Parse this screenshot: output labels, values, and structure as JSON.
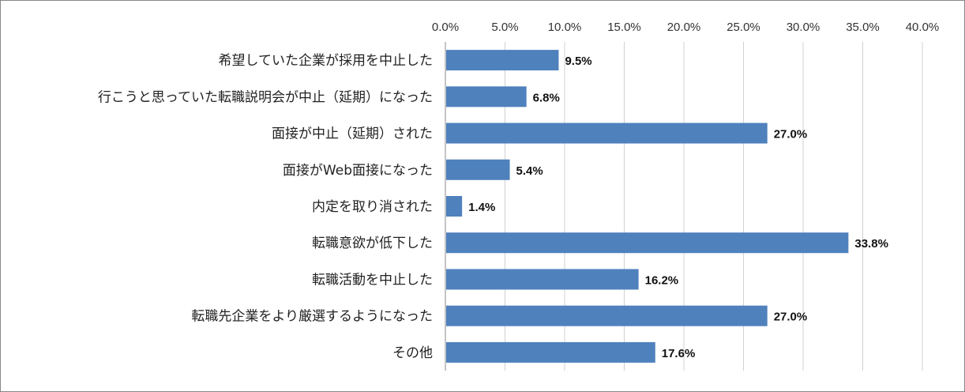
{
  "chart_data": {
    "type": "bar",
    "orientation": "horizontal",
    "categories": [
      "希望していた企業が採用を中止した",
      "行こうと思っていた転職説明会が中止（延期）になった",
      "面接が中止（延期）された",
      "面接がWeb面接になった",
      "内定を取り消された",
      "転職意欲が低下した",
      "転職活動を中止した",
      "転職先企業をより厳選するようになった",
      "その他"
    ],
    "values": [
      9.5,
      6.8,
      27.0,
      5.4,
      1.4,
      33.8,
      16.2,
      27.0,
      17.6
    ],
    "value_labels": [
      "9.5%",
      "6.8%",
      "27.0%",
      "5.4%",
      "1.4%",
      "33.8%",
      "16.2%",
      "27.0%",
      "17.6%"
    ],
    "xlim": [
      0,
      40
    ],
    "xticks": [
      0,
      5,
      10,
      15,
      20,
      25,
      30,
      35,
      40
    ],
    "xtick_labels": [
      "0.0%",
      "5.0%",
      "10.0%",
      "15.0%",
      "20.0%",
      "25.0%",
      "30.0%",
      "35.0%",
      "40.0%"
    ],
    "x_axis_position": "top",
    "grid": true,
    "legend": "none",
    "title": "",
    "xlabel": "",
    "ylabel": "",
    "bar_color": "#4f81bd",
    "grid_color": "#d0d0d0"
  }
}
